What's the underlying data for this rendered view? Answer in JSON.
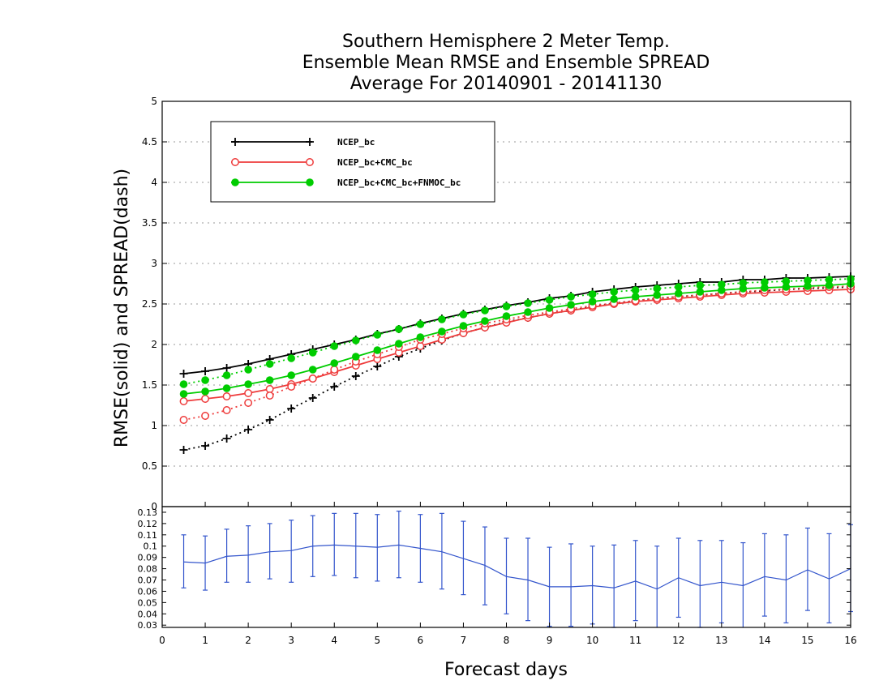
{
  "chart_data": [
    {
      "type": "line",
      "title": [
        "Southern Hemisphere 2 Meter Temp.",
        "Ensemble Mean RMSE and Ensemble SPREAD",
        "Average For 20140901 - 20141130"
      ],
      "ylabel": "RMSE(solid) and SPREAD(dash)",
      "xlim": [
        0,
        16
      ],
      "ylim": [
        0,
        5
      ],
      "yticks": [
        "0",
        "0.5",
        "1",
        "1.5",
        "2",
        "2.5",
        "3",
        "3.5",
        "4",
        "4.5",
        "5"
      ],
      "grid": "horizontal dotted",
      "legend_position": "top-left",
      "x": [
        0.5,
        1,
        1.5,
        2,
        2.5,
        3,
        3.5,
        4,
        4.5,
        5,
        5.5,
        6,
        6.5,
        7,
        7.5,
        8,
        8.5,
        9,
        9.5,
        10,
        10.5,
        11,
        11.5,
        12,
        12.5,
        13,
        13.5,
        14,
        14.5,
        15,
        15.5,
        16
      ],
      "series": [
        {
          "name": "NCEP_bc",
          "color": "#000000",
          "marker": "plus",
          "rmse": [
            1.64,
            1.67,
            1.71,
            1.76,
            1.82,
            1.88,
            1.94,
            2.0,
            2.06,
            2.13,
            2.19,
            2.26,
            2.32,
            2.38,
            2.43,
            2.48,
            2.52,
            2.57,
            2.6,
            2.65,
            2.68,
            2.71,
            2.73,
            2.75,
            2.77,
            2.77,
            2.8,
            2.8,
            2.82,
            2.82,
            2.83,
            2.84
          ],
          "spread": [
            0.7,
            0.75,
            0.84,
            0.95,
            1.07,
            1.21,
            1.34,
            1.48,
            1.61,
            1.73,
            1.85,
            1.95,
            2.05,
            2.14,
            2.21,
            2.28,
            2.33,
            2.38,
            2.42,
            2.47,
            2.51,
            2.54,
            2.57,
            2.59,
            2.61,
            2.63,
            2.65,
            2.66,
            2.68,
            2.69,
            2.7,
            2.71
          ]
        },
        {
          "name": "NCEP_bc+CMC_bc",
          "color": "#ee3b3b",
          "marker": "open-circle",
          "rmse": [
            1.3,
            1.33,
            1.36,
            1.4,
            1.45,
            1.51,
            1.58,
            1.66,
            1.74,
            1.82,
            1.9,
            1.98,
            2.06,
            2.14,
            2.21,
            2.27,
            2.33,
            2.38,
            2.42,
            2.46,
            2.5,
            2.53,
            2.55,
            2.57,
            2.59,
            2.61,
            2.63,
            2.64,
            2.65,
            2.66,
            2.67,
            2.68
          ],
          "spread": [
            1.07,
            1.12,
            1.19,
            1.28,
            1.37,
            1.48,
            1.58,
            1.69,
            1.79,
            1.88,
            1.97,
            2.06,
            2.13,
            2.2,
            2.26,
            2.31,
            2.36,
            2.4,
            2.44,
            2.48,
            2.51,
            2.54,
            2.57,
            2.59,
            2.61,
            2.63,
            2.65,
            2.67,
            2.68,
            2.7,
            2.71,
            2.72
          ]
        },
        {
          "name": "NCEP_bc+CMC_bc+FNMOC_bc",
          "color": "#00cc00",
          "marker": "filled-circle",
          "rmse": [
            1.39,
            1.42,
            1.46,
            1.51,
            1.56,
            1.62,
            1.69,
            1.77,
            1.85,
            1.93,
            2.01,
            2.09,
            2.16,
            2.23,
            2.29,
            2.35,
            2.4,
            2.45,
            2.49,
            2.53,
            2.56,
            2.59,
            2.61,
            2.63,
            2.65,
            2.67,
            2.69,
            2.7,
            2.71,
            2.72,
            2.73,
            2.75
          ],
          "spread": [
            1.51,
            1.56,
            1.62,
            1.69,
            1.76,
            1.83,
            1.9,
            1.98,
            2.05,
            2.12,
            2.19,
            2.25,
            2.31,
            2.37,
            2.42,
            2.47,
            2.51,
            2.55,
            2.59,
            2.62,
            2.65,
            2.67,
            2.69,
            2.71,
            2.73,
            2.74,
            2.76,
            2.77,
            2.78,
            2.79,
            2.8,
            2.81
          ]
        }
      ]
    },
    {
      "type": "line",
      "subtype": "errorbar",
      "xlabel": "Forecast days",
      "xlim": [
        0,
        16
      ],
      "ylim": [
        0.028,
        0.135
      ],
      "xticks": [
        "0",
        "1",
        "2",
        "3",
        "4",
        "5",
        "6",
        "7",
        "8",
        "9",
        "10",
        "11",
        "12",
        "13",
        "14",
        "15",
        "16"
      ],
      "yticks": [
        "0.03",
        "0.04",
        "0.05",
        "0.06",
        "0.07",
        "0.08",
        "0.09",
        "0.1",
        "0.11",
        "0.12",
        "0.13"
      ],
      "color": "#3355cc",
      "x": [
        0.5,
        1,
        1.5,
        2,
        2.5,
        3,
        3.5,
        4,
        4.5,
        5,
        5.5,
        6,
        6.5,
        7,
        7.5,
        8,
        8.5,
        9,
        9.5,
        10,
        10.5,
        11,
        11.5,
        12,
        12.5,
        13,
        13.5,
        14,
        14.5,
        15,
        15.5,
        16
      ],
      "values": [
        0.086,
        0.085,
        0.091,
        0.092,
        0.095,
        0.096,
        0.1,
        0.101,
        0.1,
        0.099,
        0.101,
        0.098,
        0.095,
        0.089,
        0.083,
        0.073,
        0.07,
        0.064,
        0.064,
        0.065,
        0.063,
        0.069,
        0.062,
        0.072,
        0.065,
        0.068,
        0.065,
        0.073,
        0.07,
        0.079,
        0.071,
        0.08
      ],
      "low": [
        0.063,
        0.061,
        0.068,
        0.068,
        0.071,
        0.068,
        0.073,
        0.074,
        0.072,
        0.069,
        0.072,
        0.068,
        0.062,
        0.057,
        0.048,
        0.04,
        0.034,
        0.029,
        0.029,
        0.031,
        0.028,
        0.034,
        0.026,
        0.037,
        0.028,
        0.032,
        0.027,
        0.038,
        0.032,
        0.043,
        0.032,
        0.042
      ],
      "high": [
        0.11,
        0.109,
        0.115,
        0.118,
        0.12,
        0.123,
        0.127,
        0.129,
        0.129,
        0.128,
        0.131,
        0.128,
        0.129,
        0.122,
        0.117,
        0.107,
        0.107,
        0.099,
        0.102,
        0.1,
        0.101,
        0.105,
        0.1,
        0.107,
        0.105,
        0.105,
        0.103,
        0.111,
        0.11,
        0.116,
        0.111,
        0.119
      ]
    }
  ]
}
